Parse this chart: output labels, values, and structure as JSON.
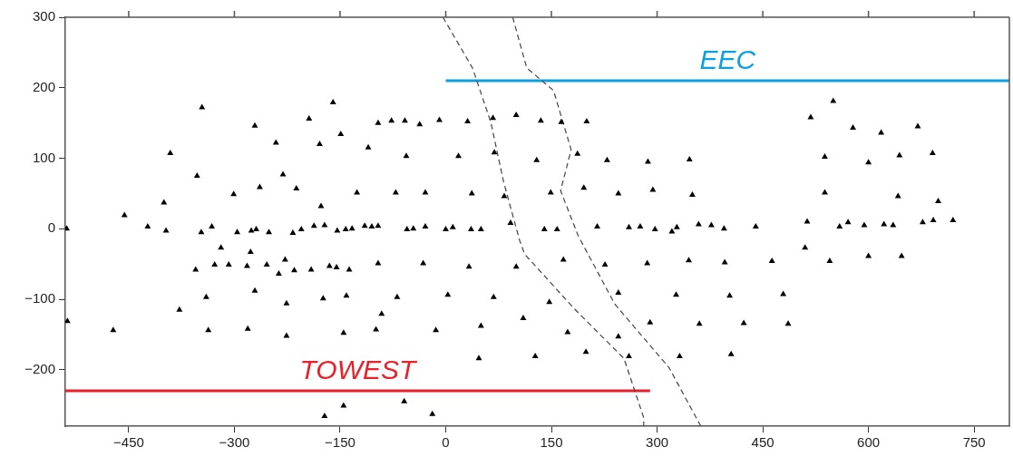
{
  "chart_data": {
    "type": "scatter",
    "marker": "triangle",
    "legend": false,
    "grid": false,
    "xlim": [
      -540,
      800
    ],
    "ylim": [
      -280,
      300
    ],
    "xticks": [
      -450,
      -300,
      -150,
      0,
      150,
      300,
      450,
      600,
      750
    ],
    "yticks": [
      -200,
      -100,
      0,
      100,
      200,
      300
    ],
    "series": [
      {
        "color": "#000000",
        "x": [
          -346,
          -271,
          -241,
          -194,
          -160,
          -149,
          -179,
          -96,
          -110,
          -391,
          -353,
          -231,
          -264,
          -212,
          -301,
          -126,
          -177,
          -400,
          -456,
          -538,
          -423,
          -397,
          -347,
          -332,
          -296,
          -276,
          -269,
          -251,
          -217,
          -205,
          -187,
          -172,
          -154,
          -142,
          -133,
          -115,
          -105,
          -96,
          -355,
          -328,
          -308,
          -319,
          -282,
          -277,
          -254,
          -228,
          -237,
          -215,
          -191,
          -165,
          -155,
          -137,
          -96,
          -340,
          -378,
          -271,
          -226,
          -174,
          -141,
          -537,
          -472,
          -337,
          -281,
          -226,
          -145,
          -99,
          -172,
          -145,
          -77,
          -58,
          -37,
          -9,
          31,
          67,
          100,
          135,
          164,
          200,
          -56,
          18,
          69,
          129,
          187,
          229,
          287,
          346,
          -71,
          -29,
          37,
          83,
          149,
          196,
          245,
          294,
          350,
          -55,
          -46,
          -29,
          0,
          10,
          36,
          50,
          92,
          140,
          158,
          215,
          260,
          276,
          297,
          321,
          328,
          550,
          518,
          578,
          618,
          670,
          538,
          600,
          644,
          691,
          538,
          642,
          699,
          359,
          377,
          395,
          440,
          513,
          559,
          571,
          594,
          622,
          635,
          677,
          692,
          720,
          -32,
          33,
          100,
          167,
          226,
          286,
          345,
          -69,
          3,
          68,
          147,
          245,
          327,
          -91,
          -14,
          50,
          110,
          173,
          245,
          290,
          47,
          127,
          199,
          260,
          332,
          -59,
          -19,
          510,
          600,
          647,
          396,
          463,
          545,
          403,
          479,
          360,
          423,
          486,
          405
        ],
        "values": [
          172,
          146,
          122,
          156,
          179,
          134,
          120,
          150,
          115,
          107,
          75,
          77,
          59,
          57,
          49,
          51,
          32,
          37,
          19,
          0,
          3,
          -3,
          -5,
          3,
          -5,
          -3,
          -1,
          -5,
          -6,
          -1,
          4,
          5,
          -3,
          -1,
          0,
          4,
          3,
          4,
          -58,
          -51,
          -51,
          -27,
          -53,
          -33,
          -51,
          -44,
          -64,
          -59,
          -58,
          -53,
          -55,
          -58,
          -49,
          -97,
          -115,
          -88,
          -106,
          -99,
          -95,
          -131,
          -144,
          -144,
          -142,
          -152,
          -148,
          -143,
          -266,
          -251,
          153,
          153,
          148,
          154,
          152,
          157,
          161,
          153,
          151,
          152,
          103,
          103,
          108,
          97,
          106,
          97,
          95,
          98,
          51,
          51,
          50,
          46,
          51,
          58,
          50,
          55,
          48,
          -1,
          0,
          3,
          -1,
          2,
          -1,
          -1,
          8,
          -1,
          -1,
          3,
          2,
          3,
          -1,
          -4,
          2,
          181,
          158,
          143,
          136,
          145,
          102,
          94,
          104,
          107,
          51,
          46,
          39,
          6,
          5,
          0,
          3,
          10,
          3,
          9,
          5,
          6,
          5,
          9,
          12,
          12,
          -49,
          -54,
          -54,
          -44,
          -51,
          -49,
          -45,
          -97,
          -94,
          -97,
          -104,
          -91,
          -94,
          -121,
          -144,
          -138,
          -127,
          -147,
          -153,
          -133,
          -184,
          -181,
          -175,
          -181,
          -181,
          -245,
          -263,
          -27,
          -39,
          -39,
          -48,
          -46,
          -46,
          -95,
          -93,
          -135,
          -134,
          -135,
          -178
        ]
      },
      {
        "type": "line",
        "line_style": "dashed",
        "marker": "none",
        "color": "#444444",
        "x": [
          -4,
          38,
          64,
          82,
          105,
          112,
          182,
          253,
          281,
          281
        ],
        "values": [
          300,
          228,
          151,
          67,
          -17,
          -36,
          -113,
          -184,
          -268,
          -280
        ]
      },
      {
        "type": "line",
        "line_style": "dashed",
        "marker": "none",
        "color": "#444444",
        "x": [
          95,
          115,
          153,
          178,
          163,
          188,
          240,
          317,
          362
        ],
        "values": [
          300,
          228,
          196,
          112,
          54,
          -10,
          -107,
          -197,
          -280
        ]
      },
      {
        "type": "line",
        "name": "EEC",
        "marker": "none",
        "color": "#0ba0e0",
        "x": [
          0,
          800
        ],
        "values": [
          210,
          210
        ]
      },
      {
        "type": "line",
        "name": "TOWEST",
        "marker": "none",
        "color": "#e8202a",
        "x": [
          -540,
          290
        ],
        "values": [
          -230,
          -230
        ]
      }
    ]
  }
}
